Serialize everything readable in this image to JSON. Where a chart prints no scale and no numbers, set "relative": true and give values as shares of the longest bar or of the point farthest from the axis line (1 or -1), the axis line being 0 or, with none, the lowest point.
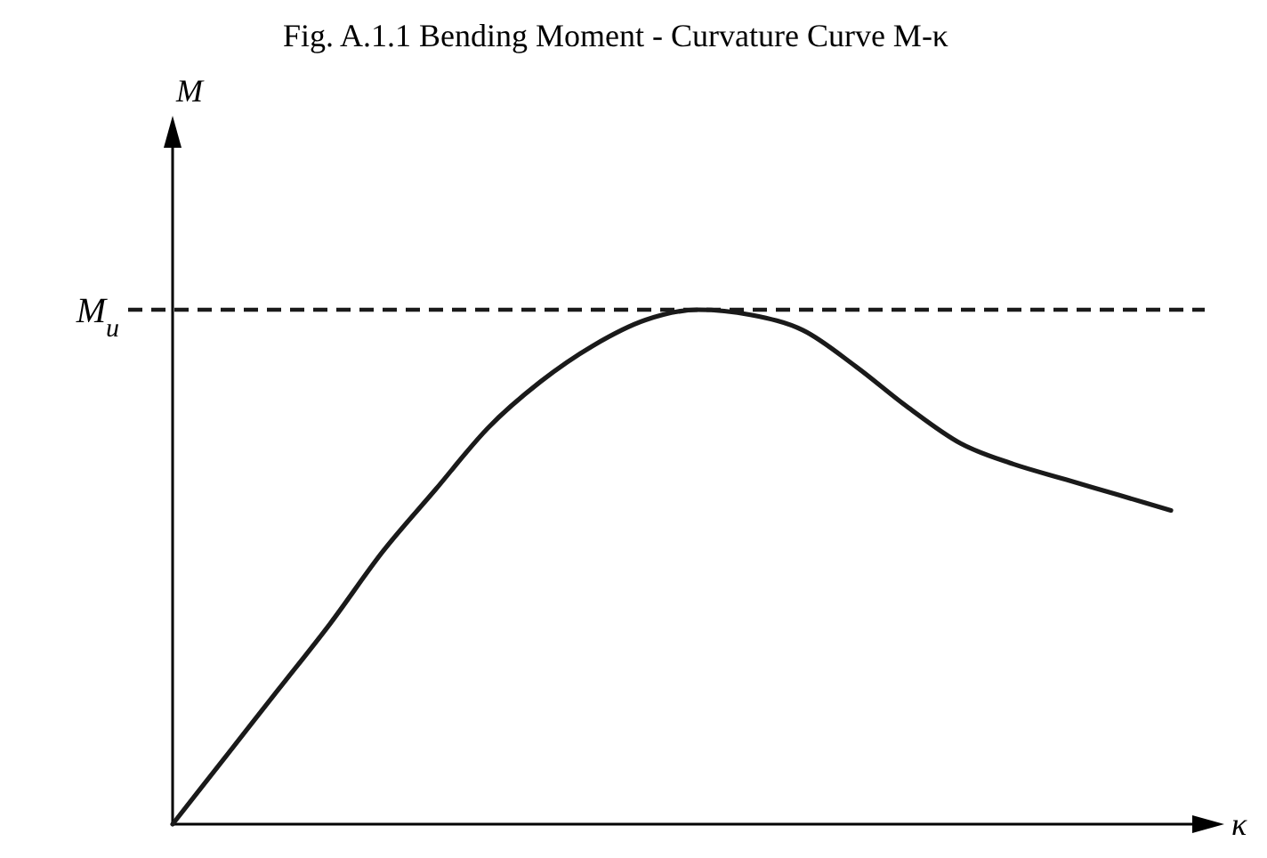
{
  "chart_data": {
    "type": "line",
    "title": "Fig.  A.1.1      Bending Moment - Curvature Curve M-κ",
    "xlabel": "κ",
    "annotations": [
      "M"
    ],
    "relative": true,
    "categories": [
      null,
      null,
      null,
      null,
      null,
      null,
      null,
      null,
      null,
      null,
      null,
      null,
      null,
      null,
      null,
      null,
      null,
      null,
      null,
      null
    ],
    "series": [
      {
        "color": "#1a1a1a",
        "values": [
          0,
          0.13,
          0.26,
          0.39,
          0.53,
          0.65,
          0.77,
          0.86,
          0.93,
          0.98,
          1.0,
          0.99,
          0.96,
          0.89,
          0.81,
          0.74,
          0.7,
          0.67,
          0.64,
          0.61
        ]
      }
    ],
    "ref_lines": [
      {
        "axis": "y",
        "value": 1,
        "label": "M$_{u}$",
        "color": "#1a1a1a",
        "line_style": "dashed"
      }
    ],
    "marker": "none",
    "line_style": "solid"
  }
}
